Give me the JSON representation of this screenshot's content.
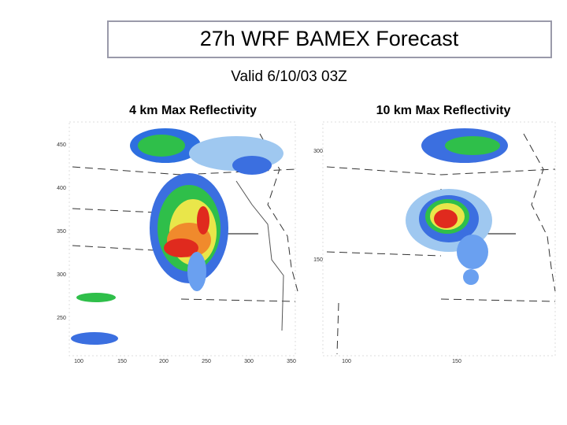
{
  "title": "27h WRF  BAMEX Forecast",
  "subtitle": "Valid 6/10/03 03Z",
  "panels": [
    {
      "label": "4 km Max Reflectivity",
      "x_labels": [
        "100",
        "150",
        "200",
        "250",
        "300",
        "350"
      ],
      "y_labels": [
        "450",
        "400",
        "350",
        "300",
        "250"
      ]
    },
    {
      "label": "10 km Max Reflectivity",
      "x_labels": [
        "100",
        "150"
      ],
      "y_labels": [
        "300",
        "150"
      ]
    }
  ]
}
